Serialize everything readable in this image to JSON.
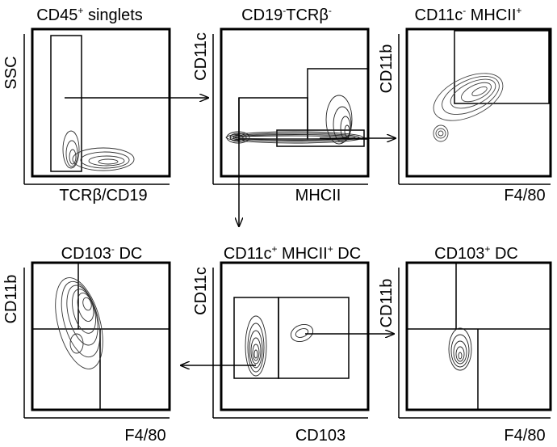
{
  "chart_data": [
    {
      "type": "contour",
      "title": "CD45",
      "title_sup": "+",
      "title_rest": " singlets",
      "xlabel": "TCRβ/CD19",
      "ylabel": "SSC",
      "gates": 1
    },
    {
      "type": "contour",
      "title": "CD19",
      "title_sup": "-",
      "title_rest": "TCRβ",
      "title_sup2": "-",
      "xlabel": "MHCII",
      "ylabel": "CD11c",
      "gates": 2
    },
    {
      "type": "contour",
      "title": "CD11c",
      "title_sup": "-",
      "title_rest": " MHCII",
      "title_sup2": "+",
      "xlabel": "F4/80",
      "ylabel": "CD11b",
      "gates": 1
    },
    {
      "type": "contour",
      "title": "CD103",
      "title_sup": "-",
      "title_rest": " DC",
      "xlabel": "F4/80",
      "ylabel": "CD11b",
      "quadrants": true
    },
    {
      "type": "contour",
      "title": "CD11c",
      "title_sup": "+",
      "title_rest": " MHCII",
      "title_sup2": "+",
      "title_rest2": " DC",
      "xlabel": "CD103",
      "ylabel": "CD11c",
      "gates": 2
    },
    {
      "type": "contour",
      "title": "CD103",
      "title_sup": "+",
      "title_rest": " DC",
      "xlabel": "F4/80",
      "ylabel": "CD11b",
      "quadrants": true
    }
  ],
  "colors": {
    "axis": "#000000",
    "contour": "#333333",
    "background": "#ffffff"
  }
}
